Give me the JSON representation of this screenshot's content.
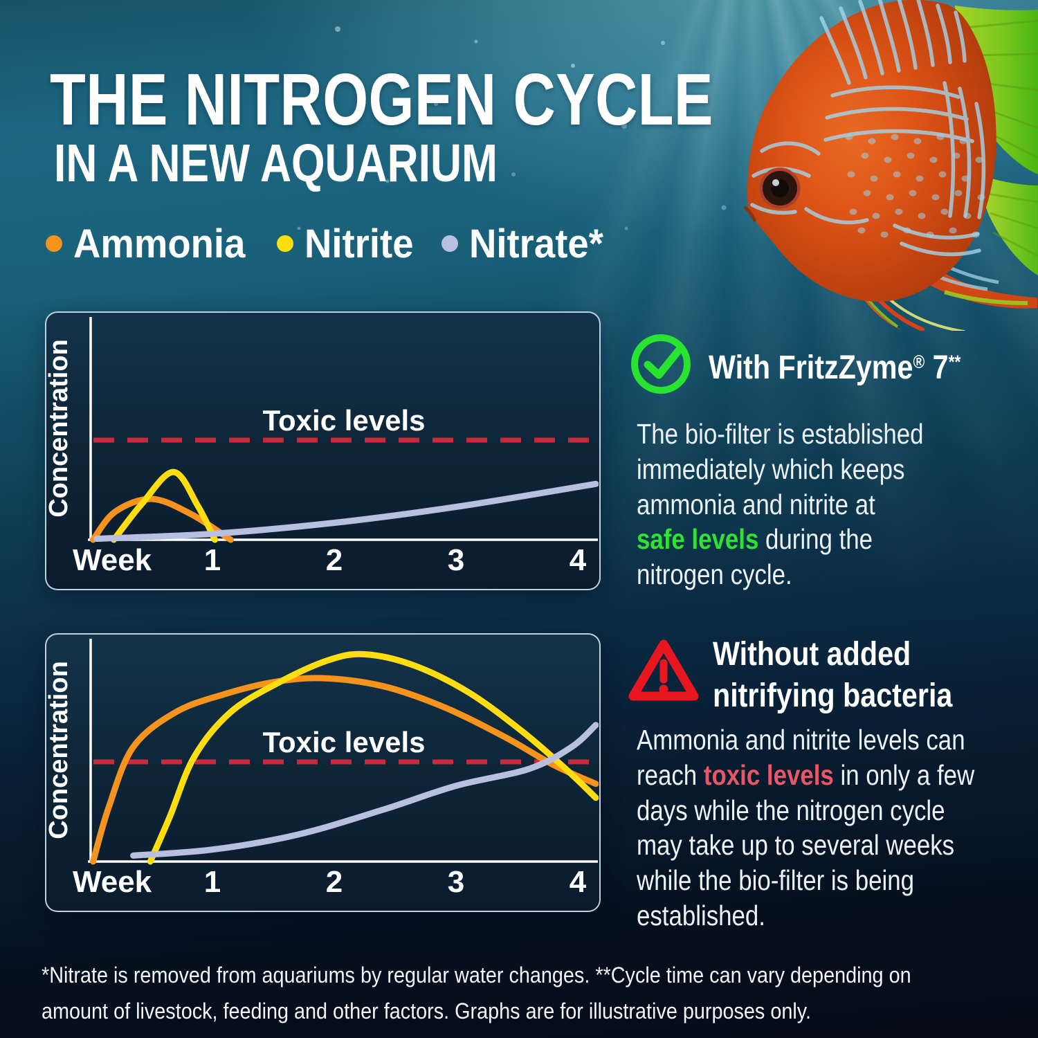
{
  "header": {
    "title_line1": "THE NITROGEN CYCLE",
    "title_line2": "IN A NEW AQUARIUM"
  },
  "legend": {
    "items": [
      {
        "label": "Ammonia",
        "color": "#f6921e"
      },
      {
        "label": "Nitrite",
        "color": "#ffdd0f"
      },
      {
        "label": "Nitrate*",
        "color": "#b9c0df"
      }
    ]
  },
  "chart_data": [
    {
      "type": "line",
      "id": "with-fritzzyme",
      "title": "With FritzZyme 7 — levels stay safe",
      "xlabel": "Week",
      "ylabel": "Concentration",
      "x_ticks": [
        1,
        2,
        3,
        4
      ],
      "x_range": [
        0,
        4.2
      ],
      "ylim_toxic_units": [
        0,
        2.23
      ],
      "grid": false,
      "legend_position": "none",
      "threshold": {
        "label": "Toxic levels",
        "value": 1.0,
        "color": "#c9293b"
      },
      "series": [
        {
          "name": "Ammonia",
          "color": "#f6921e",
          "points": [
            [
              0.02,
              0
            ],
            [
              0.2,
              0.28
            ],
            [
              0.5,
              0.41
            ],
            [
              0.82,
              0.26
            ],
            [
              1.15,
              0
            ]
          ]
        },
        {
          "name": "Nitrite",
          "color": "#ffdd0f",
          "points": [
            [
              0.19,
              0
            ],
            [
              0.42,
              0.36
            ],
            [
              0.68,
              0.68
            ],
            [
              0.88,
              0.34
            ],
            [
              1.02,
              0
            ]
          ]
        },
        {
          "name": "Nitrate",
          "color": "#b9c0df",
          "points": [
            [
              0.05,
              0.01
            ],
            [
              1,
              0.06
            ],
            [
              2,
              0.17
            ],
            [
              3,
              0.33
            ],
            [
              4.2,
              0.56
            ]
          ]
        }
      ]
    },
    {
      "type": "line",
      "id": "without-bacteria",
      "title": "Without added nitrifying bacteria — levels exceed toxic",
      "xlabel": "Week",
      "ylabel": "Concentration",
      "x_ticks": [
        1,
        2,
        3,
        4
      ],
      "x_range": [
        0,
        4.2
      ],
      "ylim_toxic_units": [
        0,
        2.23
      ],
      "grid": false,
      "legend_position": "none",
      "threshold": {
        "label": "Toxic levels",
        "value": 1.0,
        "color": "#c9293b"
      },
      "series": [
        {
          "name": "Ammonia",
          "color": "#f6921e",
          "points": [
            [
              0.02,
              0
            ],
            [
              0.15,
              0.55
            ],
            [
              0.35,
              1.15
            ],
            [
              0.7,
              1.5
            ],
            [
              1.1,
              1.68
            ],
            [
              1.5,
              1.8
            ],
            [
              1.9,
              1.84
            ],
            [
              2.4,
              1.76
            ],
            [
              2.9,
              1.55
            ],
            [
              3.4,
              1.25
            ],
            [
              3.8,
              0.97
            ],
            [
              4.2,
              0.78
            ]
          ]
        },
        {
          "name": "Nitrite",
          "color": "#ffdd0f",
          "points": [
            [
              0.49,
              0
            ],
            [
              0.65,
              0.45
            ],
            [
              0.85,
              1.05
            ],
            [
              1.15,
              1.5
            ],
            [
              1.55,
              1.8
            ],
            [
              1.95,
              2.02
            ],
            [
              2.25,
              2.08
            ],
            [
              2.65,
              1.97
            ],
            [
              3.1,
              1.7
            ],
            [
              3.55,
              1.3
            ],
            [
              3.9,
              0.93
            ],
            [
              4.2,
              0.64
            ]
          ]
        },
        {
          "name": "Nitrate",
          "color": "#b9c0df",
          "points": [
            [
              0.35,
              0.06
            ],
            [
              1,
              0.12
            ],
            [
              1.7,
              0.27
            ],
            [
              2.4,
              0.52
            ],
            [
              3.0,
              0.76
            ],
            [
              3.6,
              0.93
            ],
            [
              3.95,
              1.15
            ],
            [
              4.2,
              1.37
            ]
          ]
        }
      ]
    }
  ],
  "callouts": {
    "good": {
      "icon": "check-circle-icon",
      "icon_color": "#28e32f",
      "heading_segments": [
        {
          "text": "With FritzZyme"
        },
        {
          "text": "®",
          "sup": true
        },
        {
          "text": " 7"
        },
        {
          "text": "**",
          "sup": true
        }
      ],
      "body_segments": [
        {
          "text": "The bio-filter is established\nimmediately which keeps\nammonia and nitrite at\n"
        },
        {
          "text": "safe levels",
          "class": "hl-green"
        },
        {
          "text": " during the\nnitrogen cycle."
        }
      ]
    },
    "bad": {
      "icon": "warning-triangle-icon",
      "icon_color": "#e8161f",
      "heading": "Without added\nnitrifying bacteria",
      "body_segments": [
        {
          "text": "Ammonia and nitrite levels can\nreach "
        },
        {
          "text": "toxic levels",
          "class": "hl-red"
        },
        {
          "text": " in only a few\ndays while the nitrogen cycle\nmay take up to several weeks\nwhile the bio-filter is being\nestablished."
        }
      ]
    }
  },
  "footnote": {
    "text": "*Nitrate is removed from aquariums by regular water changes. **Cycle time can vary depending on\namount of livestock, feeding and other factors. Graphs are for illustrative purposes only."
  }
}
